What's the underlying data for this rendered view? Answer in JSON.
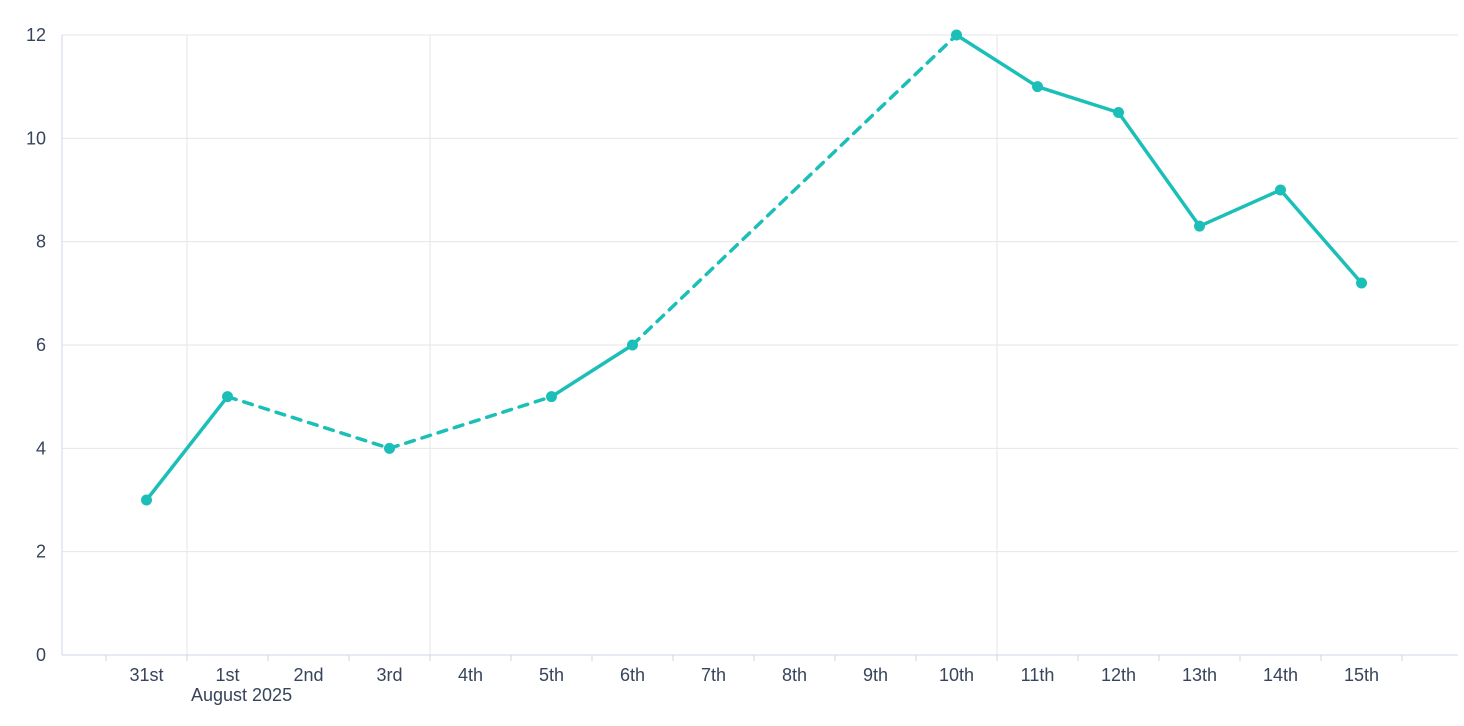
{
  "chart_data": {
    "type": "line",
    "title": "",
    "xlabel": "August 2025",
    "ylabel": "",
    "ylim": [
      0,
      12
    ],
    "yticks": [
      0,
      2,
      4,
      6,
      8,
      10,
      12
    ],
    "grid": "on",
    "legend": "none",
    "categories": [
      "31st",
      "1st",
      "2nd",
      "3rd",
      "4th",
      "5th",
      "6th",
      "7th",
      "8th",
      "9th",
      "10th",
      "11th",
      "12th",
      "13th",
      "14th",
      "15th"
    ],
    "week_gridlines_at_boundary": [
      1,
      4,
      11
    ],
    "series": [
      {
        "name": "series-1",
        "color": "#1cbfb8",
        "marker": "circle",
        "points": [
          {
            "x": 0,
            "label": "31st",
            "y": 3
          },
          {
            "x": 1,
            "label": "1st",
            "y": 5
          },
          {
            "x": 3,
            "label": "3rd",
            "y": 4
          },
          {
            "x": 5,
            "label": "5th",
            "y": 5
          },
          {
            "x": 6,
            "label": "6th",
            "y": 6
          },
          {
            "x": 10,
            "label": "10th",
            "y": 12
          },
          {
            "x": 11,
            "label": "11th",
            "y": 11
          },
          {
            "x": 12,
            "label": "12th",
            "y": 10.5
          },
          {
            "x": 13,
            "label": "13th",
            "y": 8.3
          },
          {
            "x": 14,
            "label": "14th",
            "y": 9
          },
          {
            "x": 15,
            "label": "15th",
            "y": 7.2
          }
        ],
        "segments": [
          {
            "from": 0,
            "to": 1,
            "style": "solid"
          },
          {
            "from": 1,
            "to": 3,
            "style": "dashed"
          },
          {
            "from": 3,
            "to": 5,
            "style": "dashed"
          },
          {
            "from": 5,
            "to": 6,
            "style": "solid"
          },
          {
            "from": 6,
            "to": 10,
            "style": "dashed"
          },
          {
            "from": 10,
            "to": 11,
            "style": "solid"
          },
          {
            "from": 11,
            "to": 12,
            "style": "solid"
          },
          {
            "from": 12,
            "to": 13,
            "style": "solid"
          },
          {
            "from": 13,
            "to": 14,
            "style": "solid"
          },
          {
            "from": 14,
            "to": 15,
            "style": "solid"
          }
        ]
      }
    ]
  }
}
